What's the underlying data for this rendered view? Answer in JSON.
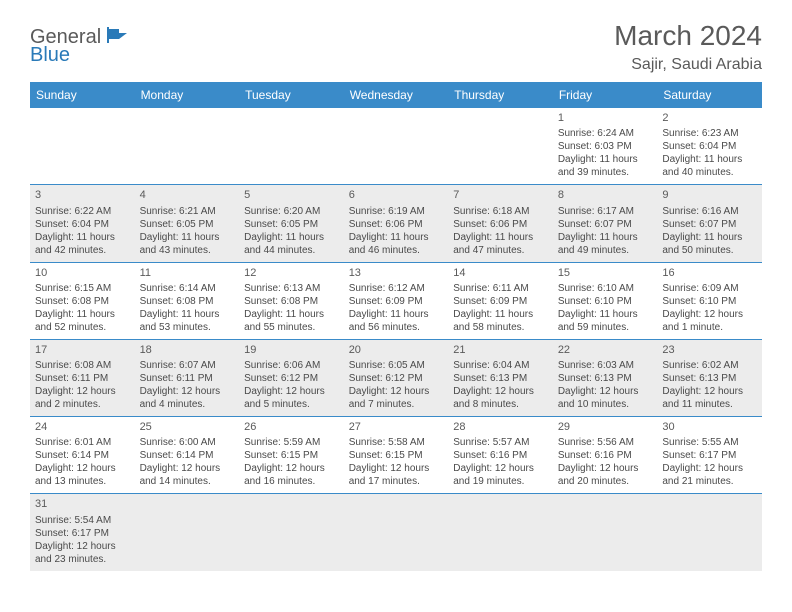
{
  "brand": {
    "part1": "General",
    "part2": "Blue",
    "color_general": "#5a5a5a",
    "color_blue": "#2a7ab8",
    "flag_color": "#2a7ab8"
  },
  "title": "March 2024",
  "location": "Sajir, Saudi Arabia",
  "header_bg": "#3a8bc9",
  "header_text_color": "#ffffff",
  "row_alt_bg": "#ececec",
  "divider_color": "#3a8bc9",
  "text_color": "#4a4a4a",
  "title_color": "#5a5a5a",
  "title_fontsize": 28,
  "location_fontsize": 16,
  "header_fontsize": 12,
  "cell_fontsize": 10,
  "days": [
    "Sunday",
    "Monday",
    "Tuesday",
    "Wednesday",
    "Thursday",
    "Friday",
    "Saturday"
  ],
  "weeks": [
    {
      "shaded": false,
      "cells": [
        null,
        null,
        null,
        null,
        null,
        {
          "n": "1",
          "sr": "Sunrise: 6:24 AM",
          "ss": "Sunset: 6:03 PM",
          "d1": "Daylight: 11 hours",
          "d2": "and 39 minutes."
        },
        {
          "n": "2",
          "sr": "Sunrise: 6:23 AM",
          "ss": "Sunset: 6:04 PM",
          "d1": "Daylight: 11 hours",
          "d2": "and 40 minutes."
        }
      ]
    },
    {
      "shaded": true,
      "cells": [
        {
          "n": "3",
          "sr": "Sunrise: 6:22 AM",
          "ss": "Sunset: 6:04 PM",
          "d1": "Daylight: 11 hours",
          "d2": "and 42 minutes."
        },
        {
          "n": "4",
          "sr": "Sunrise: 6:21 AM",
          "ss": "Sunset: 6:05 PM",
          "d1": "Daylight: 11 hours",
          "d2": "and 43 minutes."
        },
        {
          "n": "5",
          "sr": "Sunrise: 6:20 AM",
          "ss": "Sunset: 6:05 PM",
          "d1": "Daylight: 11 hours",
          "d2": "and 44 minutes."
        },
        {
          "n": "6",
          "sr": "Sunrise: 6:19 AM",
          "ss": "Sunset: 6:06 PM",
          "d1": "Daylight: 11 hours",
          "d2": "and 46 minutes."
        },
        {
          "n": "7",
          "sr": "Sunrise: 6:18 AM",
          "ss": "Sunset: 6:06 PM",
          "d1": "Daylight: 11 hours",
          "d2": "and 47 minutes."
        },
        {
          "n": "8",
          "sr": "Sunrise: 6:17 AM",
          "ss": "Sunset: 6:07 PM",
          "d1": "Daylight: 11 hours",
          "d2": "and 49 minutes."
        },
        {
          "n": "9",
          "sr": "Sunrise: 6:16 AM",
          "ss": "Sunset: 6:07 PM",
          "d1": "Daylight: 11 hours",
          "d2": "and 50 minutes."
        }
      ]
    },
    {
      "shaded": false,
      "cells": [
        {
          "n": "10",
          "sr": "Sunrise: 6:15 AM",
          "ss": "Sunset: 6:08 PM",
          "d1": "Daylight: 11 hours",
          "d2": "and 52 minutes."
        },
        {
          "n": "11",
          "sr": "Sunrise: 6:14 AM",
          "ss": "Sunset: 6:08 PM",
          "d1": "Daylight: 11 hours",
          "d2": "and 53 minutes."
        },
        {
          "n": "12",
          "sr": "Sunrise: 6:13 AM",
          "ss": "Sunset: 6:08 PM",
          "d1": "Daylight: 11 hours",
          "d2": "and 55 minutes."
        },
        {
          "n": "13",
          "sr": "Sunrise: 6:12 AM",
          "ss": "Sunset: 6:09 PM",
          "d1": "Daylight: 11 hours",
          "d2": "and 56 minutes."
        },
        {
          "n": "14",
          "sr": "Sunrise: 6:11 AM",
          "ss": "Sunset: 6:09 PM",
          "d1": "Daylight: 11 hours",
          "d2": "and 58 minutes."
        },
        {
          "n": "15",
          "sr": "Sunrise: 6:10 AM",
          "ss": "Sunset: 6:10 PM",
          "d1": "Daylight: 11 hours",
          "d2": "and 59 minutes."
        },
        {
          "n": "16",
          "sr": "Sunrise: 6:09 AM",
          "ss": "Sunset: 6:10 PM",
          "d1": "Daylight: 12 hours",
          "d2": "and 1 minute."
        }
      ]
    },
    {
      "shaded": true,
      "cells": [
        {
          "n": "17",
          "sr": "Sunrise: 6:08 AM",
          "ss": "Sunset: 6:11 PM",
          "d1": "Daylight: 12 hours",
          "d2": "and 2 minutes."
        },
        {
          "n": "18",
          "sr": "Sunrise: 6:07 AM",
          "ss": "Sunset: 6:11 PM",
          "d1": "Daylight: 12 hours",
          "d2": "and 4 minutes."
        },
        {
          "n": "19",
          "sr": "Sunrise: 6:06 AM",
          "ss": "Sunset: 6:12 PM",
          "d1": "Daylight: 12 hours",
          "d2": "and 5 minutes."
        },
        {
          "n": "20",
          "sr": "Sunrise: 6:05 AM",
          "ss": "Sunset: 6:12 PM",
          "d1": "Daylight: 12 hours",
          "d2": "and 7 minutes."
        },
        {
          "n": "21",
          "sr": "Sunrise: 6:04 AM",
          "ss": "Sunset: 6:13 PM",
          "d1": "Daylight: 12 hours",
          "d2": "and 8 minutes."
        },
        {
          "n": "22",
          "sr": "Sunrise: 6:03 AM",
          "ss": "Sunset: 6:13 PM",
          "d1": "Daylight: 12 hours",
          "d2": "and 10 minutes."
        },
        {
          "n": "23",
          "sr": "Sunrise: 6:02 AM",
          "ss": "Sunset: 6:13 PM",
          "d1": "Daylight: 12 hours",
          "d2": "and 11 minutes."
        }
      ]
    },
    {
      "shaded": false,
      "cells": [
        {
          "n": "24",
          "sr": "Sunrise: 6:01 AM",
          "ss": "Sunset: 6:14 PM",
          "d1": "Daylight: 12 hours",
          "d2": "and 13 minutes."
        },
        {
          "n": "25",
          "sr": "Sunrise: 6:00 AM",
          "ss": "Sunset: 6:14 PM",
          "d1": "Daylight: 12 hours",
          "d2": "and 14 minutes."
        },
        {
          "n": "26",
          "sr": "Sunrise: 5:59 AM",
          "ss": "Sunset: 6:15 PM",
          "d1": "Daylight: 12 hours",
          "d2": "and 16 minutes."
        },
        {
          "n": "27",
          "sr": "Sunrise: 5:58 AM",
          "ss": "Sunset: 6:15 PM",
          "d1": "Daylight: 12 hours",
          "d2": "and 17 minutes."
        },
        {
          "n": "28",
          "sr": "Sunrise: 5:57 AM",
          "ss": "Sunset: 6:16 PM",
          "d1": "Daylight: 12 hours",
          "d2": "and 19 minutes."
        },
        {
          "n": "29",
          "sr": "Sunrise: 5:56 AM",
          "ss": "Sunset: 6:16 PM",
          "d1": "Daylight: 12 hours",
          "d2": "and 20 minutes."
        },
        {
          "n": "30",
          "sr": "Sunrise: 5:55 AM",
          "ss": "Sunset: 6:17 PM",
          "d1": "Daylight: 12 hours",
          "d2": "and 21 minutes."
        }
      ]
    },
    {
      "shaded": true,
      "last": true,
      "cells": [
        {
          "n": "31",
          "sr": "Sunrise: 5:54 AM",
          "ss": "Sunset: 6:17 PM",
          "d1": "Daylight: 12 hours",
          "d2": "and 23 minutes."
        },
        null,
        null,
        null,
        null,
        null,
        null
      ]
    }
  ]
}
